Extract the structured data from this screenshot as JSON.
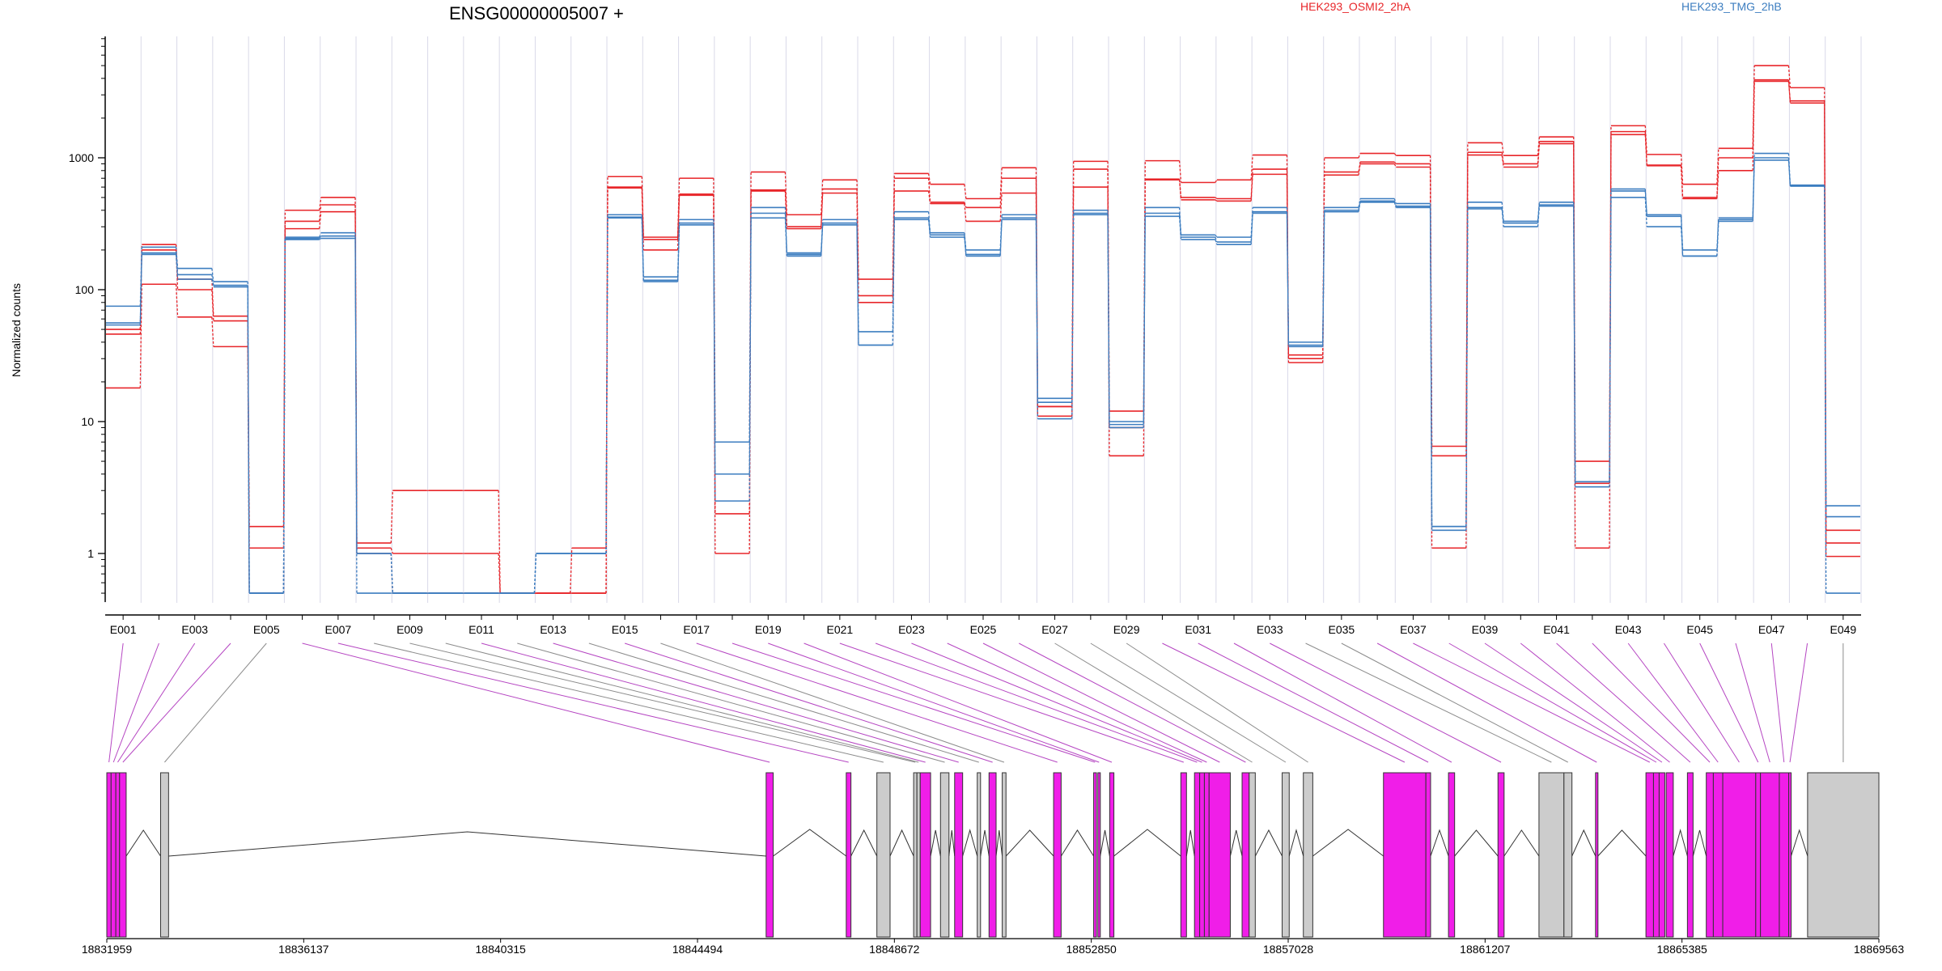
{
  "chart_data": {
    "type": "line",
    "title": "ENSG00000005007 +",
    "ylabel": "Normalized counts",
    "yscale": "log",
    "yticks": [
      "1",
      "10",
      "100",
      "1000"
    ],
    "grid": true,
    "legend": [
      {
        "name": "HEK293_OSMI2_2hA",
        "color": "#e8262a"
      },
      {
        "name": "HEK293_TMG_2hB",
        "color": "#3d7ec0"
      }
    ],
    "exons": [
      "E001",
      "E002",
      "E003",
      "E004",
      "E005",
      "E006",
      "E007",
      "E008",
      "E009",
      "E010",
      "E011",
      "E012",
      "E013",
      "E014",
      "E015",
      "E016",
      "E017",
      "E018",
      "E019",
      "E020",
      "E021",
      "E022",
      "E023",
      "E024",
      "E025",
      "E026",
      "E027",
      "E028",
      "E029",
      "E030",
      "E031",
      "E032",
      "E033",
      "E034",
      "E035",
      "E036",
      "E037",
      "E038",
      "E039",
      "E040",
      "E041",
      "E042",
      "E043",
      "E044",
      "E045",
      "E046",
      "E047",
      "E048",
      "E049"
    ],
    "exon_tick_labels": [
      "E001",
      "E003",
      "E005",
      "E007",
      "E009",
      "E011",
      "E013",
      "E015",
      "E017",
      "E019",
      "E021",
      "E023",
      "E025",
      "E027",
      "E029",
      "E031",
      "E033",
      "E035",
      "E037",
      "E039",
      "E041",
      "E043",
      "E045",
      "E047",
      "E049"
    ],
    "series": [
      {
        "condition": "HEK293_OSMI2_2hA",
        "values": [
          50,
          220,
          120,
          63,
          1.6,
          400,
          500,
          1.2,
          3,
          3,
          3,
          0.5,
          0.5,
          1.1,
          720,
          250,
          700,
          7,
          780,
          370,
          680,
          120,
          760,
          630,
          490,
          840,
          13,
          940,
          12,
          950,
          650,
          680,
          1050,
          32,
          1000,
          1080,
          1040,
          6.5,
          1300,
          1040,
          1440,
          5,
          1750,
          1060,
          630,
          1180,
          5000,
          3400,
          1.5
        ]
      },
      {
        "condition": "HEK293_OSMI2_2hA",
        "values": [
          46,
          200,
          100,
          58,
          1.1,
          330,
          440,
          1.1,
          1,
          1,
          1,
          0.5,
          0.5,
          0.5,
          600,
          240,
          530,
          2,
          570,
          300,
          580,
          90,
          700,
          460,
          420,
          700,
          13,
          820,
          9,
          690,
          500,
          490,
          820,
          30,
          780,
          930,
          900,
          5.5,
          1100,
          900,
          1330,
          3.4,
          1500,
          880,
          500,
          1000,
          3800,
          2700,
          1.2
        ]
      },
      {
        "condition": "HEK293_OSMI2_2hA",
        "values": [
          18,
          110,
          62,
          37,
          0.5,
          290,
          390,
          1.0,
          0.5,
          0.5,
          0.5,
          0.5,
          0.5,
          0.5,
          590,
          200,
          520,
          1.0,
          560,
          290,
          540,
          80,
          560,
          450,
          330,
          540,
          11,
          600,
          5.5,
          680,
          480,
          470,
          750,
          28,
          740,
          900,
          850,
          1.1,
          1050,
          850,
          1280,
          1.1,
          1580,
          870,
          490,
          800,
          3900,
          2600,
          0.95
        ]
      },
      {
        "condition": "HEK293_TMG_2hB",
        "values": [
          75,
          210,
          145,
          115,
          0.5,
          250,
          270,
          1.0,
          0.5,
          0.5,
          0.5,
          0.5,
          1.0,
          1.0,
          370,
          125,
          340,
          7,
          420,
          190,
          340,
          48,
          390,
          270,
          200,
          370,
          15,
          400,
          10,
          420,
          260,
          250,
          420,
          40,
          420,
          490,
          450,
          1.6,
          460,
          330,
          460,
          3.5,
          580,
          370,
          200,
          350,
          1080,
          620,
          2.3
        ]
      },
      {
        "condition": "HEK293_TMG_2hB",
        "values": [
          56,
          190,
          130,
          108,
          0.5,
          245,
          255,
          1.0,
          0.5,
          0.5,
          0.5,
          0.5,
          1.0,
          1.0,
          355,
          118,
          320,
          4,
          380,
          185,
          320,
          38,
          350,
          260,
          185,
          350,
          14,
          380,
          9.5,
          380,
          250,
          230,
          390,
          38,
          400,
          470,
          430,
          1.6,
          420,
          320,
          440,
          3.5,
          560,
          360,
          180,
          340,
          1000,
          610,
          1.9
        ]
      },
      {
        "condition": "HEK293_TMG_2hB",
        "values": [
          54,
          185,
          120,
          105,
          0.5,
          240,
          245,
          0.5,
          0.5,
          0.5,
          0.5,
          0.5,
          1.0,
          1.0,
          350,
          115,
          310,
          2.5,
          350,
          180,
          310,
          38,
          340,
          250,
          180,
          340,
          10.5,
          370,
          9,
          360,
          240,
          220,
          380,
          37,
          390,
          460,
          420,
          1.5,
          410,
          300,
          430,
          3.2,
          500,
          300,
          180,
          330,
          960,
          610,
          0.5
        ]
      }
    ],
    "genomic_ticks": [
      "18831959",
      "18836137",
      "18840315",
      "18844494",
      "18848672",
      "18852850",
      "18857028",
      "18861207",
      "18865385",
      "18869563"
    ],
    "genomic_range": [
      18831959,
      18869563
    ],
    "gene_model": [
      {
        "exon": "E001",
        "start": 18831959,
        "end": 18832050,
        "tested": true
      },
      {
        "exon": "E002",
        "start": 18832050,
        "end": 18832150,
        "tested": true
      },
      {
        "exon": "E003",
        "start": 18832150,
        "end": 18832230,
        "tested": true
      },
      {
        "exon": "E004",
        "start": 18832230,
        "end": 18832370,
        "tested": true
      },
      {
        "exon": "E005",
        "start": 18833100,
        "end": 18833270,
        "tested": false
      },
      {
        "exon": "E006",
        "start": 18845950,
        "end": 18846100,
        "tested": true
      },
      {
        "exon": "E007",
        "start": 18847650,
        "end": 18847750,
        "tested": true
      },
      {
        "exon": "E008",
        "start": 18848300,
        "end": 18848580,
        "tested": false
      },
      {
        "exon": "E009",
        "start": 18849080,
        "end": 18849150,
        "tested": false
      },
      {
        "exon": "E010",
        "start": 18849150,
        "end": 18849220,
        "tested": false
      },
      {
        "exon": "E011",
        "start": 18849220,
        "end": 18849440,
        "tested": true
      },
      {
        "exon": "E012",
        "start": 18849650,
        "end": 18849830,
        "tested": false
      },
      {
        "exon": "E013",
        "start": 18849950,
        "end": 18850120,
        "tested": true
      },
      {
        "exon": "E014",
        "start": 18850430,
        "end": 18850500,
        "tested": false
      },
      {
        "exon": "E015",
        "start": 18850680,
        "end": 18850830,
        "tested": true
      },
      {
        "exon": "E016",
        "start": 18850960,
        "end": 18851040,
        "tested": false
      },
      {
        "exon": "E017",
        "start": 18852050,
        "end": 18852210,
        "tested": true
      },
      {
        "exon": "E018",
        "start": 18852900,
        "end": 18852960,
        "tested": true
      },
      {
        "exon": "E019",
        "start": 18852990,
        "end": 18853040,
        "tested": true
      },
      {
        "exon": "E020",
        "start": 18853240,
        "end": 18853330,
        "tested": true
      },
      {
        "exon": "E021",
        "start": 18854750,
        "end": 18854870,
        "tested": true
      },
      {
        "exon": "E022",
        "start": 18855040,
        "end": 18855150,
        "tested": true
      },
      {
        "exon": "E023",
        "start": 18855150,
        "end": 18855250,
        "tested": true
      },
      {
        "exon": "E024",
        "start": 18855250,
        "end": 18855350,
        "tested": true
      },
      {
        "exon": "E025",
        "start": 18855350,
        "end": 18855800,
        "tested": true
      },
      {
        "exon": "E026",
        "start": 18856050,
        "end": 18856200,
        "tested": true
      },
      {
        "exon": "E027",
        "start": 18856200,
        "end": 18856330,
        "tested": false
      },
      {
        "exon": "E028",
        "start": 18856900,
        "end": 18857050,
        "tested": false
      },
      {
        "exon": "E029",
        "start": 18857350,
        "end": 18857550,
        "tested": false
      },
      {
        "exon": "E030",
        "start": 18859050,
        "end": 18859950,
        "tested": true
      },
      {
        "exon": "E031",
        "start": 18859950,
        "end": 18860050,
        "tested": true
      },
      {
        "exon": "E032",
        "start": 18860430,
        "end": 18860560,
        "tested": true
      },
      {
        "exon": "E033",
        "start": 18861480,
        "end": 18861610,
        "tested": true
      },
      {
        "exon": "E034",
        "start": 18862350,
        "end": 18862880,
        "tested": false
      },
      {
        "exon": "E035",
        "start": 18862880,
        "end": 18863050,
        "tested": false
      },
      {
        "exon": "E036",
        "start": 18863550,
        "end": 18863600,
        "tested": true
      },
      {
        "exon": "E037",
        "start": 18864620,
        "end": 18864780,
        "tested": true
      },
      {
        "exon": "E038",
        "start": 18864780,
        "end": 18864900,
        "tested": true
      },
      {
        "exon": "E039",
        "start": 18864900,
        "end": 18865020,
        "tested": true
      },
      {
        "exon": "E040",
        "start": 18865050,
        "end": 18865200,
        "tested": true
      },
      {
        "exon": "E041",
        "start": 18865500,
        "end": 18865620,
        "tested": true
      },
      {
        "exon": "E042",
        "start": 18865900,
        "end": 18866050,
        "tested": true
      },
      {
        "exon": "E043",
        "start": 18866050,
        "end": 18866250,
        "tested": true
      },
      {
        "exon": "E044",
        "start": 18866250,
        "end": 18866950,
        "tested": true
      },
      {
        "exon": "E045",
        "start": 18866950,
        "end": 18867050,
        "tested": true
      },
      {
        "exon": "E046",
        "start": 18867050,
        "end": 18867450,
        "tested": true
      },
      {
        "exon": "E047",
        "start": 18867450,
        "end": 18867650,
        "tested": true
      },
      {
        "exon": "E048",
        "start": 18867650,
        "end": 18867700,
        "tested": true
      },
      {
        "exon": "E049",
        "start": 18868050,
        "end": 18869563,
        "tested": false
      }
    ],
    "colors": {
      "tested_exon": "#f01ee8",
      "untested_exon": "#cccccc",
      "tested_link": "#b545c2",
      "untested_link": "#8c8c8c",
      "grid": "#d9d9e8"
    }
  }
}
